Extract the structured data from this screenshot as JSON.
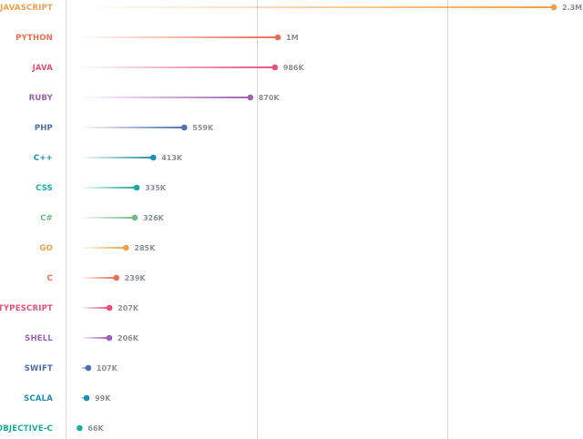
{
  "chart_data": {
    "type": "lollipop",
    "orientation": "horizontal",
    "categories": [
      "JAVASCRIPT",
      "PYTHON",
      "JAVA",
      "RUBY",
      "PHP",
      "C++",
      "CSS",
      "C#",
      "GO",
      "C",
      "TYPESCRIPT",
      "SHELL",
      "SWIFT",
      "SCALA",
      "OBJECTIVE-C"
    ],
    "values": [
      2300000,
      1000000,
      986000,
      870000,
      559000,
      413000,
      335000,
      326000,
      285000,
      239000,
      207000,
      206000,
      107000,
      99000,
      66000
    ],
    "value_labels": [
      "2.3M",
      "1M",
      "986K",
      "870K",
      "559K",
      "413K",
      "335K",
      "326K",
      "285K",
      "239K",
      "207K",
      "206K",
      "107K",
      "99K",
      "66K"
    ],
    "colors": [
      "#f0a04b",
      "#ee6d50",
      "#e8507a",
      "#a25fb4",
      "#4d6fb3",
      "#1d8fb1",
      "#18ad9c",
      "#6dbd7f",
      "#f0a04b",
      "#ee6d50",
      "#e8507a",
      "#a25fb4",
      "#4d6fb3",
      "#1d8fb1",
      "#18ad9c"
    ],
    "xlim": [
      0,
      2300000
    ],
    "gridlines": [
      0,
      900000,
      1800000
    ],
    "grid": true
  }
}
